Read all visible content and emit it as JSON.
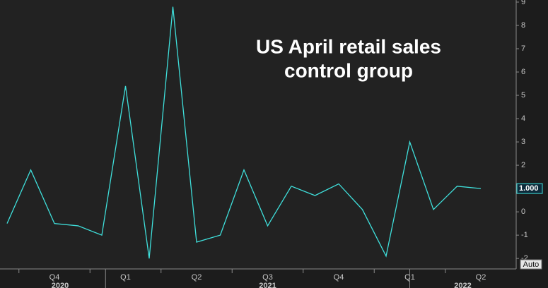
{
  "chart_data": {
    "type": "line",
    "title": [
      "US April retail sales",
      "control group"
    ],
    "categories": [
      null,
      null,
      "Q4",
      null,
      null,
      "Q1",
      null,
      null,
      "Q2",
      null,
      null,
      "Q3",
      null,
      null,
      "Q4",
      null,
      null,
      "Q1",
      null,
      null,
      "Q2"
    ],
    "years": [
      "2020",
      "2021",
      "2022"
    ],
    "series": [
      {
        "color": "#3fe0dc",
        "values": [
          -0.5,
          1.8,
          -0.5,
          -0.6,
          -1.0,
          5.4,
          -2.0,
          8.8,
          -1.3,
          -1.0,
          1.8,
          -0.6,
          1.1,
          0.7,
          1.2,
          0.1,
          -1.9,
          3.0,
          0.1,
          1.1,
          1.0
        ],
        "last_value_label": "1.000"
      }
    ],
    "ylim": [
      -2.45,
      9.09
    ],
    "yticks": [
      -2,
      -1,
      0,
      1,
      2,
      3,
      4,
      5,
      6,
      7,
      8,
      9
    ],
    "grid": false,
    "axis_button": "Auto"
  }
}
